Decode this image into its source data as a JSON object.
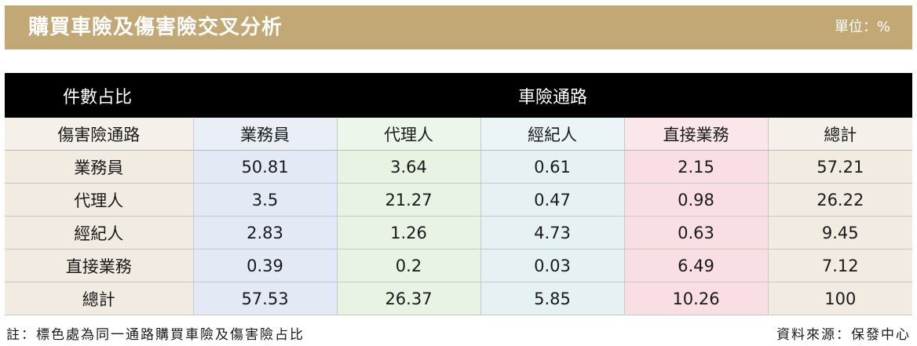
{
  "header": {
    "title": "購買車險及傷害險交叉分析",
    "unit": "單位：%"
  },
  "table": {
    "corner_label": "件數占比",
    "group_label": "車險通路",
    "row_header_label": "傷害險通路",
    "columns": [
      "業務員",
      "代理人",
      "經紀人",
      "直接業務",
      "總計"
    ],
    "rows": [
      {
        "label": "業務員",
        "values": [
          "50.81",
          "3.64",
          "0.61",
          "2.15",
          "57.21"
        ]
      },
      {
        "label": "代理人",
        "values": [
          "3.5",
          "21.27",
          "0.47",
          "0.98",
          "26.22"
        ]
      },
      {
        "label": "經紀人",
        "values": [
          "2.83",
          "1.26",
          "4.73",
          "0.63",
          "9.45"
        ]
      },
      {
        "label": "直接業務",
        "values": [
          "0.39",
          "0.2",
          "0.03",
          "6.49",
          "7.12"
        ]
      },
      {
        "label": "總計",
        "values": [
          "57.53",
          "26.37",
          "5.85",
          "10.26",
          "100"
        ]
      }
    ]
  },
  "footer": {
    "note": "註：標色處為同一通路購買車險及傷害險占比",
    "source": "資料來源：保發中心"
  },
  "colors": {
    "title_bar": "#c1a874",
    "header_bg": "#000000",
    "row_label_bg": "#f1ebe1",
    "col_agent_bg": "#e3eaf5",
    "col_proxy_bg": "#e8f3e4",
    "col_broker_bg": "#e6f1f4",
    "col_direct_bg": "#f9dee3",
    "col_total_bg": "#f1ebe1"
  }
}
